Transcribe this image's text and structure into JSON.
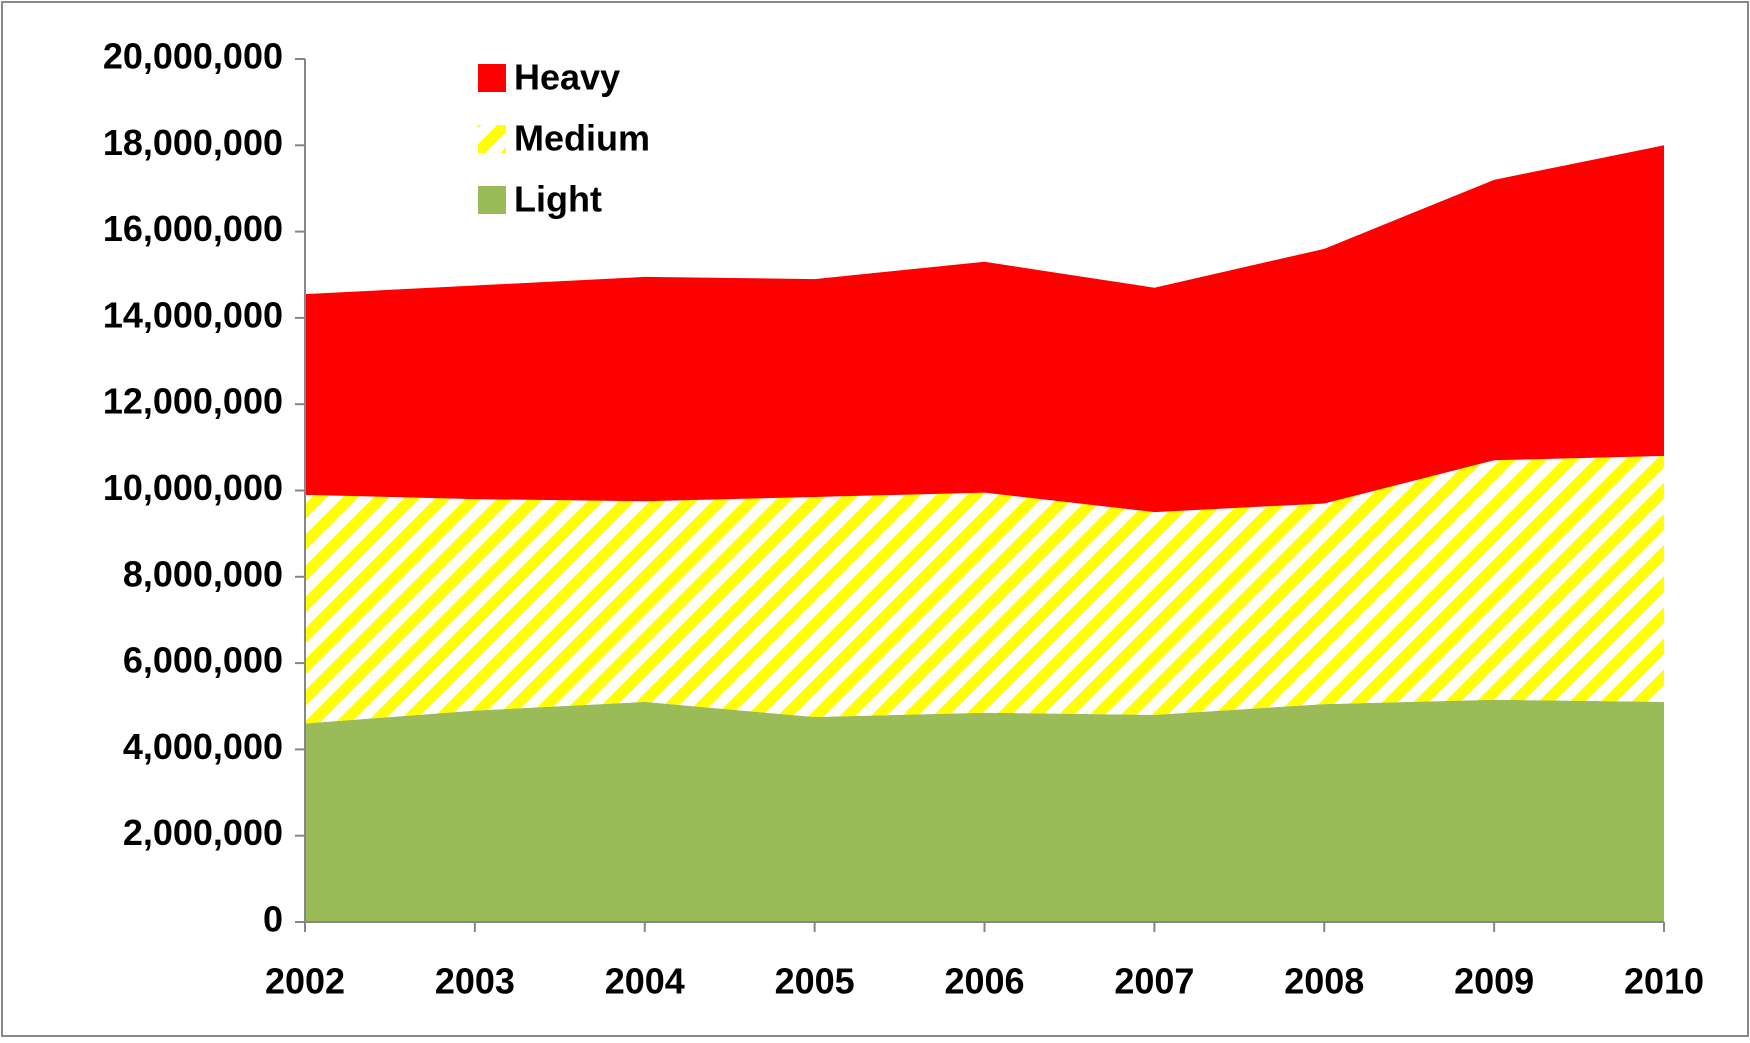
{
  "chart_data": {
    "type": "stacked_area",
    "categories": [
      "2002",
      "2003",
      "2004",
      "2005",
      "2006",
      "2007",
      "2008",
      "2009",
      "2010"
    ],
    "series": [
      {
        "name": "Light",
        "color": "#9bbb59",
        "values": [
          4600000,
          4900000,
          5100000,
          4750000,
          4850000,
          4800000,
          5050000,
          5150000,
          5100000
        ]
      },
      {
        "name": "Medium",
        "color": "#ffff00",
        "hatch": true,
        "values": [
          5300000,
          4900000,
          4650000,
          5100000,
          5100000,
          4700000,
          4650000,
          5550000,
          5700000
        ]
      },
      {
        "name": "Heavy",
        "color": "#ff0000",
        "values": [
          4650000,
          4950000,
          5200000,
          5050000,
          5350000,
          5200000,
          5900000,
          6500000,
          7200000
        ]
      }
    ],
    "ylim": [
      0,
      20000000
    ],
    "yticks": [
      0,
      {
        "value": 2000000,
        "label": "2,000,000"
      },
      {
        "value": 4000000,
        "label": "4,000,000"
      },
      {
        "value": 6000000,
        "label": "6,000,000"
      },
      {
        "value": 8000000,
        "label": "8,000,000"
      },
      {
        "value": 10000000,
        "label": "10,000,000"
      },
      {
        "value": 12000000,
        "label": "12,000,000"
      },
      {
        "value": 14000000,
        "label": "14,000,000"
      },
      {
        "value": 16000000,
        "label": "16,000,000"
      },
      {
        "value": 18000000,
        "label": "18,000,000"
      },
      {
        "value": 20000000,
        "label": "20,000,000"
      }
    ],
    "legend": "top-left",
    "grid": false
  }
}
